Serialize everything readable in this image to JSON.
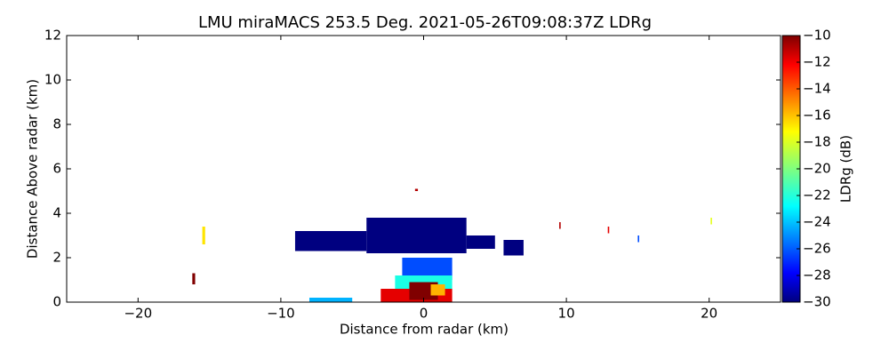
{
  "chart_data": {
    "type": "heatmap",
    "title": "LMU miraMACS 253.5 Deg. 2021-05-26T09:08:37Z  LDRg",
    "xlabel": "Distance from radar (km)",
    "ylabel": "Distance Above radar  (km)",
    "xlim": [
      -25,
      25
    ],
    "xticks": [
      {
        "value": -20,
        "label": "−20"
      },
      {
        "value": -10,
        "label": "−10"
      },
      0,
      10,
      20
    ],
    "ylim": [
      0,
      12
    ],
    "yticks": [
      0,
      2,
      4,
      6,
      8,
      10,
      12
    ],
    "colormap": "jet",
    "colorbar": {
      "label": "LDRg (dB)",
      "lim": [
        -30,
        -10
      ],
      "ticks": [
        {
          "value": -30,
          "label": "−30"
        },
        {
          "value": -28,
          "label": "−28"
        },
        {
          "value": -26,
          "label": "−26"
        },
        {
          "value": -24,
          "label": "−24"
        },
        {
          "value": -22,
          "label": "−22"
        },
        {
          "value": -20,
          "label": "−20"
        },
        {
          "value": -18,
          "label": "−18"
        },
        {
          "value": -16,
          "label": "−16"
        },
        {
          "value": -14,
          "label": "−14"
        },
        {
          "value": -12,
          "label": "−12"
        },
        {
          "value": -10,
          "label": "−10"
        }
      ]
    },
    "cells": [
      {
        "x0": -4,
        "x1": 3,
        "y0": 2.2,
        "y1": 3.8,
        "value": -30
      },
      {
        "x0": -9,
        "x1": -4,
        "y0": 2.3,
        "y1": 3.2,
        "value": -30
      },
      {
        "x0": 3,
        "x1": 5,
        "y0": 2.4,
        "y1": 3.0,
        "value": -30
      },
      {
        "x0": 5.6,
        "x1": 7,
        "y0": 2.1,
        "y1": 2.8,
        "value": -30
      },
      {
        "x0": -1.5,
        "x1": 2,
        "y0": 1.0,
        "y1": 2.0,
        "value": -26
      },
      {
        "x0": -2,
        "x1": 2,
        "y0": 0.6,
        "y1": 1.2,
        "value": -22
      },
      {
        "x0": -3,
        "x1": 2,
        "y0": 0,
        "y1": 0.6,
        "value": -12
      },
      {
        "x0": -1,
        "x1": 1,
        "y0": 0.1,
        "y1": 0.9,
        "value": -10
      },
      {
        "x0": 0.5,
        "x1": 1.5,
        "y0": 0.3,
        "y1": 0.8,
        "value": -16
      },
      {
        "x0": -8,
        "x1": -5,
        "y0": 0,
        "y1": 0.2,
        "value": -24
      },
      {
        "x0": -16.2,
        "x1": -16,
        "y0": 0.8,
        "y1": 1.3,
        "value": -10
      },
      {
        "x0": -15.5,
        "x1": -15.3,
        "y0": 2.6,
        "y1": 3.4,
        "value": -17
      },
      {
        "x0": 15,
        "x1": 15.1,
        "y0": 2.7,
        "y1": 3.0,
        "value": -26
      },
      {
        "x0": 12.9,
        "x1": 13.0,
        "y0": 3.1,
        "y1": 3.4,
        "value": -12
      },
      {
        "x0": 20.1,
        "x1": 20.2,
        "y0": 3.5,
        "y1": 3.8,
        "value": -18
      },
      {
        "x0": 9.5,
        "x1": 9.6,
        "y0": 3.3,
        "y1": 3.6,
        "value": -11
      },
      {
        "x0": -0.6,
        "x1": -0.4,
        "y0": 5.0,
        "y1": 5.1,
        "value": -11
      }
    ]
  }
}
